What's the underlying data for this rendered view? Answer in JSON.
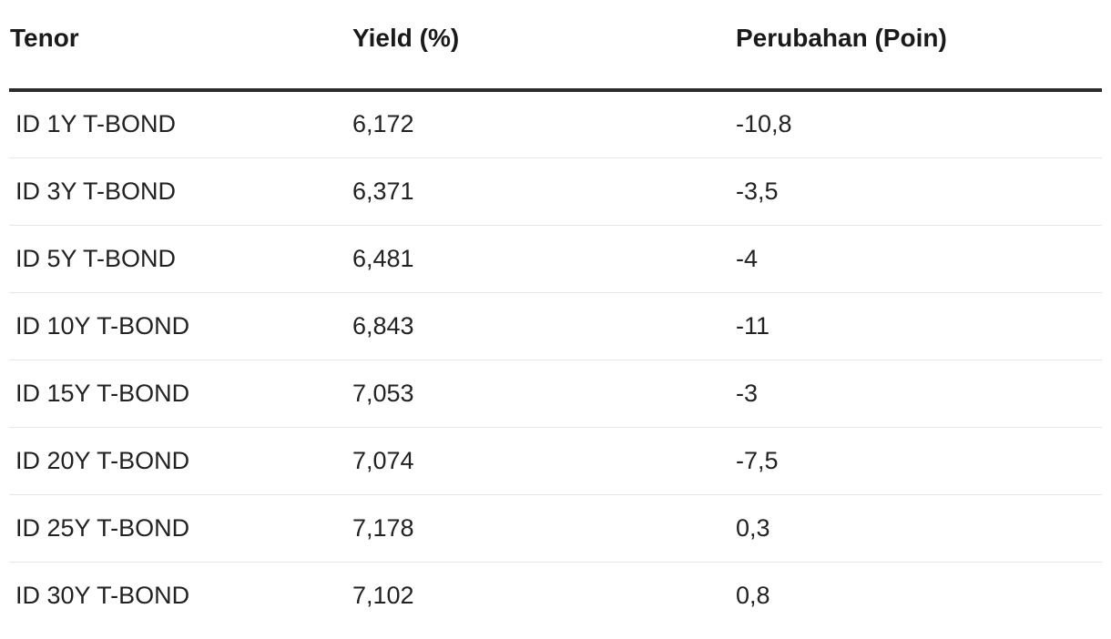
{
  "table": {
    "headers": [
      "Tenor",
      "Yield (%)",
      "Perubahan (Poin)"
    ],
    "rows": [
      {
        "tenor": "ID 1Y T-BOND",
        "yield": "6,172",
        "change": "-10,8"
      },
      {
        "tenor": "ID 3Y T-BOND",
        "yield": "6,371",
        "change": "-3,5"
      },
      {
        "tenor": "ID 5Y T-BOND",
        "yield": "6,481",
        "change": "-4"
      },
      {
        "tenor": "ID 10Y T-BOND",
        "yield": "6,843",
        "change": "-11"
      },
      {
        "tenor": "ID 15Y T-BOND",
        "yield": "7,053",
        "change": "-3"
      },
      {
        "tenor": "ID 20Y T-BOND",
        "yield": "7,074",
        "change": "-7,5"
      },
      {
        "tenor": "ID 25Y T-BOND",
        "yield": "7,178",
        "change": "0,3"
      },
      {
        "tenor": "ID 30Y T-BOND",
        "yield": "7,102",
        "change": "0,8"
      }
    ]
  },
  "colors": {
    "text": "#1a1a1a",
    "header_rule": "#2b2b2b",
    "row_divider": "#e6e6e6",
    "background": "#ffffff"
  }
}
